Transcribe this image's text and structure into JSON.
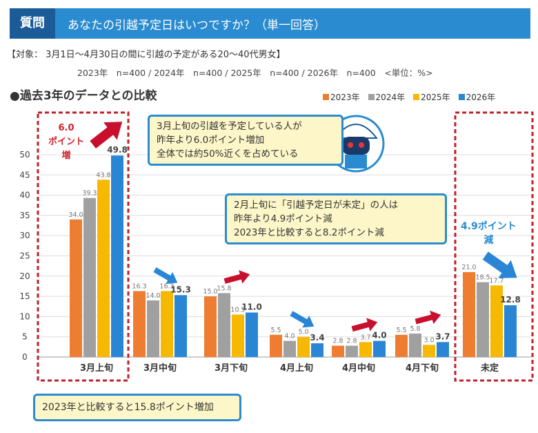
{
  "header": {
    "label": "質問",
    "question": "あなたの引越予定日はいつですか？（単一回答）"
  },
  "target": "【対象： 3月1日～4月30日の間に引越の予定がある20～40代男女】",
  "sample": "2023年　n=400 / 2024年　n=400 / 2025年　n=400 / 2026年　n=400　<単位：%>",
  "subtitle": "●過去3年のデータとの比較",
  "colors": {
    "2023年": "#ee7d31",
    "2024年": "#a0a0a0",
    "2025年": "#f6b800",
    "2026年": "#2a86d4",
    "accent_red": "#c8102e",
    "frame_red": "#c0202a",
    "callout_border": "#2a8bd0",
    "callout_fill": "#fdf6c8"
  },
  "chart_data": {
    "type": "bar",
    "categories": [
      "3月上旬",
      "3月中旬",
      "3月下旬",
      "4月上旬",
      "4月中旬",
      "4月下旬",
      "未定"
    ],
    "series": [
      {
        "name": "2023年",
        "values": [
          34.0,
          16.3,
          15.0,
          5.5,
          2.8,
          5.5,
          21.0
        ]
      },
      {
        "name": "2024年",
        "values": [
          39.3,
          14.0,
          15.8,
          4.0,
          2.8,
          5.8,
          18.5
        ]
      },
      {
        "name": "2025年",
        "values": [
          43.8,
          16.3,
          10.5,
          5.0,
          3.7,
          3.0,
          17.7
        ]
      },
      {
        "name": "2026年",
        "values": [
          49.8,
          15.3,
          11.0,
          3.4,
          4.0,
          3.7,
          12.8
        ]
      }
    ],
    "yticks": [
      0,
      5,
      10,
      15,
      20,
      25,
      30,
      35,
      40,
      45,
      50
    ],
    "ylim": [
      0,
      50
    ],
    "grid": true,
    "legend": "top-right",
    "trend_arrows": [
      "up",
      "down",
      "up",
      "down",
      "up",
      "up",
      "down"
    ]
  },
  "annotations": {
    "red_label": "6.0\nポイント\n増",
    "blue_label": "4.9ポイント\n減",
    "callout1": "3月上旬の引越を予定している人が\n昨年より6.0ポイント増加\n全体では約50%近くを占めている",
    "callout2": "2月上旬に「引越予定日が未定」の人は\n昨年より4.9ポイント減\n2023年と比較すると8.2ポイント減",
    "callout3": "2023年と比較すると15.8ポイント増加"
  }
}
